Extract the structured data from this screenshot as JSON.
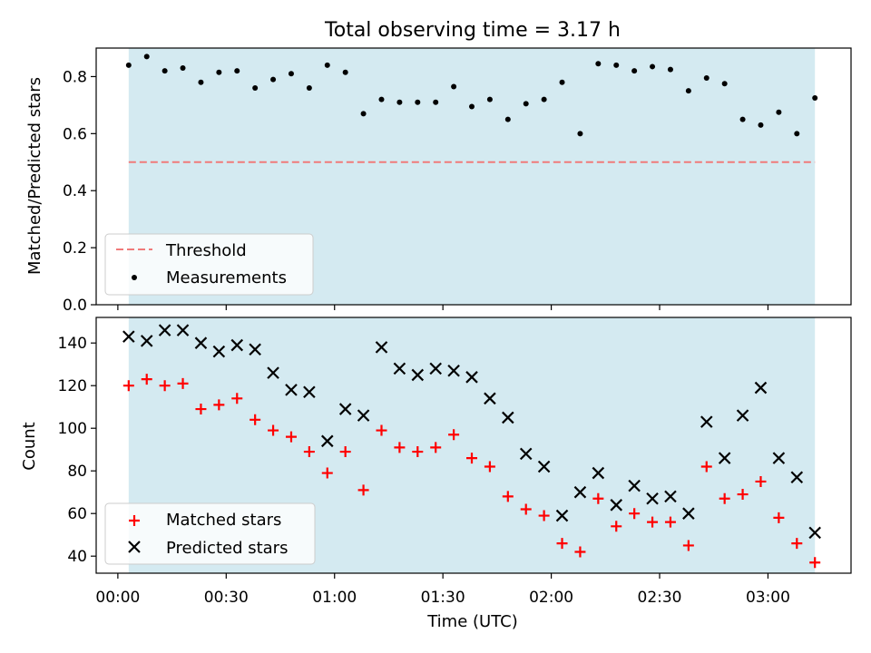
{
  "figure_title": "Total observing time = 3.17 h",
  "colors": {
    "shade": "#d4eaf1",
    "threshold": "#f07a7a",
    "matched": "#ff0000",
    "predicted": "#000000",
    "measurement": "#000000"
  },
  "chart_data": [
    {
      "type": "scatter",
      "title": "Total observing time = 3.17 h",
      "xlabel": "",
      "ylabel": "Matched/Predicted stars",
      "xlim": [
        "23:54",
        "03:23"
      ],
      "ylim": [
        0,
        0.9
      ],
      "yticks": [
        "0.0",
        "0.2",
        "0.4",
        "0.6",
        "0.8"
      ],
      "shaded_interval": [
        "00:03",
        "03:13"
      ],
      "threshold": {
        "name": "Threshold",
        "y": 0.5,
        "style": "dashed"
      },
      "x": [
        "00:03",
        "00:08",
        "00:13",
        "00:18",
        "00:23",
        "00:28",
        "00:33",
        "00:38",
        "00:43",
        "00:48",
        "00:53",
        "00:58",
        "01:03",
        "01:08",
        "01:13",
        "01:18",
        "01:23",
        "01:28",
        "01:33",
        "01:38",
        "01:43",
        "01:48",
        "01:53",
        "01:58",
        "02:03",
        "02:08",
        "02:13",
        "02:18",
        "02:23",
        "02:28",
        "02:33",
        "02:38",
        "02:43",
        "02:48",
        "02:53",
        "02:58",
        "03:03",
        "03:08",
        "03:13"
      ],
      "series": [
        {
          "name": "Measurements",
          "values": [
            0.84,
            0.87,
            0.82,
            0.83,
            0.78,
            0.815,
            0.82,
            0.76,
            0.79,
            0.81,
            0.76,
            0.84,
            0.815,
            0.67,
            0.72,
            0.71,
            0.71,
            0.71,
            0.765,
            0.695,
            0.72,
            0.65,
            0.705,
            0.72,
            0.78,
            0.6,
            0.845,
            0.84,
            0.82,
            0.835,
            0.825,
            0.75,
            0.795,
            0.775,
            0.65,
            0.63,
            0.675,
            0.6,
            0.725
          ]
        }
      ],
      "legend": "lower-left"
    },
    {
      "type": "scatter",
      "xlabel": "Time (UTC)",
      "ylabel": "Count",
      "xlim": [
        "23:54",
        "03:23"
      ],
      "ylim": [
        32,
        152
      ],
      "yticks": [
        "40",
        "60",
        "80",
        "100",
        "120",
        "140"
      ],
      "xticks": [
        "00:00",
        "00:30",
        "01:00",
        "01:30",
        "02:00",
        "02:30",
        "03:00"
      ],
      "shaded_interval": [
        "00:03",
        "03:13"
      ],
      "x": [
        "00:03",
        "00:08",
        "00:13",
        "00:18",
        "00:23",
        "00:28",
        "00:33",
        "00:38",
        "00:43",
        "00:48",
        "00:53",
        "00:58",
        "01:03",
        "01:08",
        "01:13",
        "01:18",
        "01:23",
        "01:28",
        "01:33",
        "01:38",
        "01:43",
        "01:48",
        "01:53",
        "01:58",
        "02:03",
        "02:08",
        "02:13",
        "02:18",
        "02:23",
        "02:28",
        "02:33",
        "02:38",
        "02:43",
        "02:48",
        "02:53",
        "02:58",
        "03:03",
        "03:08",
        "03:13"
      ],
      "series": [
        {
          "name": "Matched stars",
          "marker": "plus",
          "values": [
            120,
            123,
            120,
            121,
            109,
            111,
            114,
            104,
            99,
            96,
            89,
            79,
            89,
            71,
            99,
            91,
            89,
            91,
            97,
            86,
            82,
            68,
            62,
            59,
            46,
            42,
            67,
            54,
            60,
            56,
            56,
            45,
            82,
            67,
            69,
            75,
            58,
            46,
            37
          ]
        },
        {
          "name": "Predicted stars",
          "marker": "x",
          "values": [
            143,
            141,
            146,
            146,
            140,
            136,
            139,
            137,
            126,
            118,
            117,
            94,
            109,
            106,
            138,
            128,
            125,
            128,
            127,
            124,
            114,
            105,
            88,
            82,
            59,
            70,
            79,
            64,
            73,
            67,
            68,
            60,
            103,
            86,
            106,
            119,
            86,
            77,
            51
          ]
        }
      ],
      "legend": "lower-left"
    }
  ]
}
